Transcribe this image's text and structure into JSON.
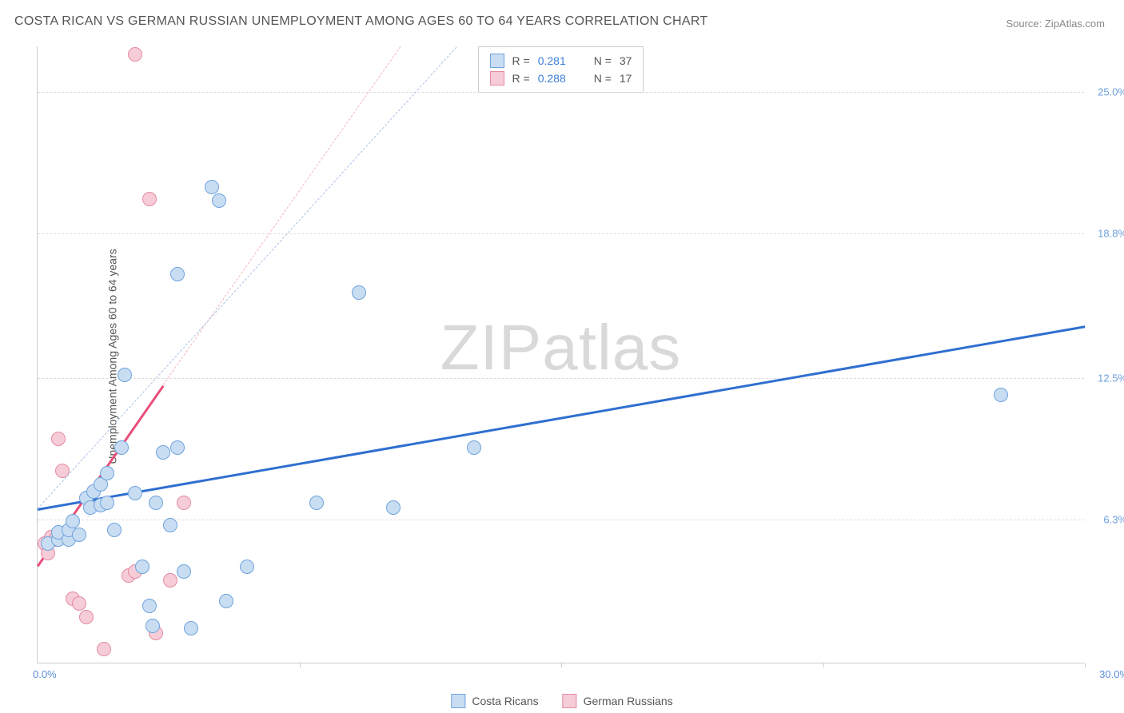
{
  "title": "COSTA RICAN VS GERMAN RUSSIAN UNEMPLOYMENT AMONG AGES 60 TO 64 YEARS CORRELATION CHART",
  "source_label": "Source: ",
  "source_name": "ZipAtlas.com",
  "ylabel": "Unemployment Among Ages 60 to 64 years",
  "watermark_a": "ZIP",
  "watermark_b": "atlas",
  "chart": {
    "type": "scatter",
    "xlim": [
      0,
      30
    ],
    "ylim": [
      0,
      27
    ],
    "x_origin_label": "0.0%",
    "x_max_label": "30.0%",
    "xtick_positions": [
      7.5,
      15,
      22.5,
      30
    ],
    "yticks": [
      {
        "v": 6.3,
        "label": "6.3%",
        "color": "#6b9edc"
      },
      {
        "v": 12.5,
        "label": "12.5%",
        "color": "#6b9edc"
      },
      {
        "v": 18.8,
        "label": "18.8%",
        "color": "#6b9edc"
      },
      {
        "v": 25.0,
        "label": "25.0%",
        "color": "#6b9edc"
      }
    ],
    "background_color": "#ffffff",
    "grid_color": "#dddddd",
    "series": [
      {
        "name": "Costa Ricans",
        "fill": "#c9ddf2",
        "stroke": "#6ea3dd",
        "trend_color": "#2f6fd0",
        "trend_dash_color": "#a9c3e6",
        "r_value": "0.281",
        "n_value": "37",
        "trend": {
          "x1": 0,
          "y1": 6.8,
          "x2": 30,
          "y2": 14.8
        },
        "dash": {
          "x1": 0,
          "y1": 6.8,
          "x2": 12,
          "y2": 27
        },
        "points": [
          [
            0.3,
            5.2
          ],
          [
            0.6,
            5.4
          ],
          [
            0.6,
            5.7
          ],
          [
            0.9,
            5.4
          ],
          [
            0.9,
            5.8
          ],
          [
            1.0,
            6.2
          ],
          [
            1.2,
            5.6
          ],
          [
            1.4,
            7.2
          ],
          [
            1.5,
            6.8
          ],
          [
            1.6,
            7.5
          ],
          [
            1.8,
            6.9
          ],
          [
            1.8,
            7.8
          ],
          [
            2.0,
            8.3
          ],
          [
            2.0,
            7.0
          ],
          [
            2.2,
            5.8
          ],
          [
            2.4,
            9.4
          ],
          [
            2.5,
            12.6
          ],
          [
            2.8,
            7.4
          ],
          [
            3.0,
            4.2
          ],
          [
            3.2,
            2.5
          ],
          [
            3.3,
            1.6
          ],
          [
            3.4,
            7.0
          ],
          [
            3.6,
            9.2
          ],
          [
            3.8,
            6.0
          ],
          [
            4.0,
            9.4
          ],
          [
            4.0,
            17.0
          ],
          [
            4.2,
            4.0
          ],
          [
            4.4,
            1.5
          ],
          [
            5.0,
            20.8
          ],
          [
            5.2,
            20.2
          ],
          [
            5.4,
            2.7
          ],
          [
            6.0,
            4.2
          ],
          [
            8.0,
            7.0
          ],
          [
            9.2,
            16.2
          ],
          [
            10.2,
            6.8
          ],
          [
            12.5,
            9.4
          ],
          [
            27.6,
            11.7
          ]
        ]
      },
      {
        "name": "German Russians",
        "fill": "#f6cdd7",
        "stroke": "#e48ba4",
        "trend_color": "#e94f7a",
        "trend_dash_color": "#f3b4c5",
        "r_value": "0.288",
        "n_value": "17",
        "trend": {
          "x1": 0,
          "y1": 4.3,
          "x2": 3.6,
          "y2": 12.2
        },
        "dash": {
          "x1": 3.6,
          "y1": 12.2,
          "x2": 10.4,
          "y2": 27
        },
        "points": [
          [
            0.2,
            5.2
          ],
          [
            0.3,
            4.8
          ],
          [
            0.4,
            5.5
          ],
          [
            0.5,
            5.4
          ],
          [
            0.6,
            9.8
          ],
          [
            0.7,
            8.4
          ],
          [
            1.0,
            2.8
          ],
          [
            1.2,
            2.6
          ],
          [
            1.4,
            2.0
          ],
          [
            1.9,
            0.6
          ],
          [
            2.6,
            3.8
          ],
          [
            2.8,
            4.0
          ],
          [
            2.8,
            26.6
          ],
          [
            3.2,
            20.3
          ],
          [
            3.4,
            1.3
          ],
          [
            3.8,
            3.6
          ],
          [
            4.2,
            7.0
          ]
        ]
      }
    ],
    "legend_labels": {
      "r": "R  =",
      "n": "N  ="
    },
    "marker_radius": 9,
    "marker_stroke_width": 1.3,
    "trend_line_width": 2.5,
    "title_fontsize": 16,
    "label_fontsize": 14,
    "tick_fontsize": 13
  }
}
